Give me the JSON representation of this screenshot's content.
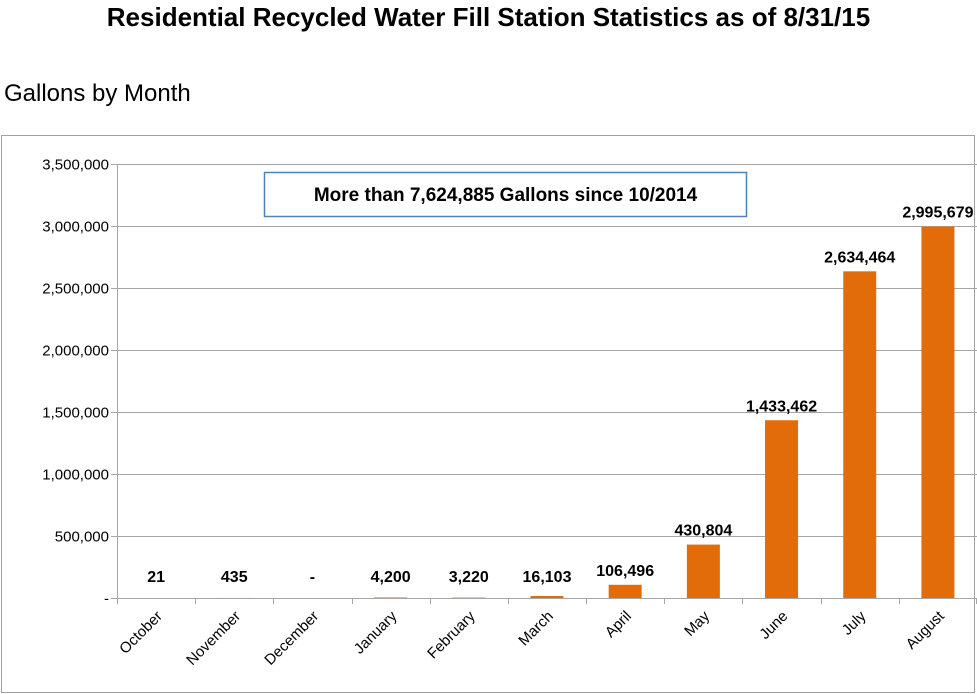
{
  "chart_data": {
    "type": "bar",
    "title": "Residential Recycled Water Fill Station Statistics as of 8/31/15",
    "subtitle": "Gallons by Month",
    "categories": [
      "October",
      "November",
      "December",
      "January",
      "February",
      "March",
      "April",
      "May",
      "June",
      "July",
      "August"
    ],
    "values": [
      21,
      435,
      0,
      4200,
      3220,
      16103,
      106496,
      430804,
      1433462,
      2634464,
      2995679
    ],
    "data_labels": [
      "21",
      "435",
      "-",
      "4,200",
      "3,220",
      "16,103",
      "106,496",
      "430,804",
      "1,433,462",
      "2,634,464",
      "2,995,679"
    ],
    "y_ticks": [
      "-",
      "500,000",
      "1,000,000",
      "1,500,000",
      "2,000,000",
      "2,500,000",
      "3,000,000",
      "3,500,000"
    ],
    "ylim": [
      0,
      3500000
    ],
    "grid": true,
    "legend": "none",
    "annotation": "More than 7,624,885 Gallons since 10/2014",
    "colors": {
      "bar": "#E36C0A",
      "grid": "#A6A6A6",
      "callout_border": "#4F81BD"
    }
  }
}
